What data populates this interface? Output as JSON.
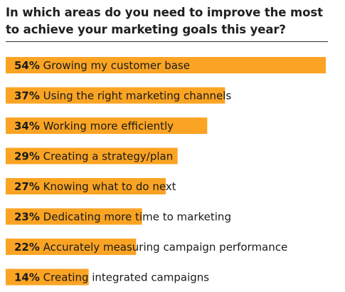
{
  "chart_data": {
    "type": "bar",
    "orientation": "horizontal",
    "title": "In which areas do you need to improve the most to achieve your marketing goals this year?",
    "categories": [
      "Growing my customer base",
      "Using the right marketing channels",
      "Working more efficiently",
      "Creating a strategy/plan",
      "Knowing what to do next",
      "Dedicating more time to marketing",
      "Accurately measuring campaign performance",
      "Creating integrated campaigns"
    ],
    "values": [
      54,
      37,
      34,
      29,
      27,
      23,
      22,
      14
    ],
    "value_labels": [
      "54%",
      "37%",
      "34%",
      "29%",
      "27%",
      "23%",
      "22%",
      "14%"
    ],
    "xlim": [
      0,
      54
    ],
    "grid": false,
    "legend": "none",
    "bar_color": "#FBA424"
  }
}
